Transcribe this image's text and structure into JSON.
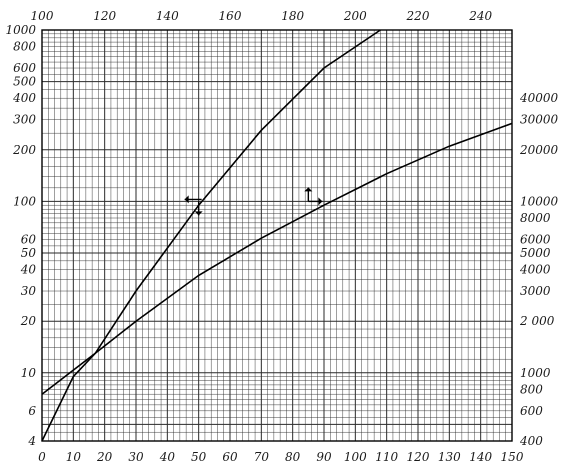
{
  "chart_data": {
    "type": "line",
    "title": "",
    "xlabel": "",
    "ylabel": "",
    "x_bottom": {
      "range": [
        0,
        150
      ],
      "ticks": [
        0,
        10,
        20,
        30,
        40,
        50,
        60,
        70,
        80,
        90,
        100,
        110,
        120,
        130,
        140,
        150
      ],
      "tick_labels": [
        "0",
        "10",
        "20",
        "30",
        "40",
        "50",
        "60",
        "70",
        "80",
        "90",
        "100",
        "110",
        "120",
        "130",
        "140",
        "150"
      ]
    },
    "x_top": {
      "range": [
        100,
        250
      ],
      "ticks": [
        100,
        120,
        140,
        160,
        180,
        200,
        220,
        240
      ],
      "tick_labels": [
        "100",
        "120",
        "140",
        "160",
        "180",
        "200",
        "220",
        "240"
      ]
    },
    "y_left": {
      "scale": "log",
      "range": [
        4,
        1000
      ],
      "ticks": [
        4,
        6,
        10,
        20,
        30,
        40,
        50,
        60,
        100,
        200,
        300,
        400,
        500,
        600,
        800,
        1000
      ],
      "tick_labels": [
        "4",
        "6",
        "10",
        "20",
        "30",
        "40",
        "50",
        "60",
        "100",
        "200",
        "300",
        "400",
        "500",
        "600",
        "800",
        "1000"
      ]
    },
    "y_right": {
      "scale": "log",
      "range": [
        400,
        100000
      ],
      "ticks": [
        400,
        600,
        800,
        1000,
        2000,
        3000,
        4000,
        5000,
        6000,
        8000,
        10000,
        20000,
        30000,
        40000
      ],
      "tick_labels": [
        "400",
        "600",
        "800",
        "1000",
        "2 000",
        "3000",
        "4000",
        "5000",
        "6000",
        "8000",
        "10000",
        "20000",
        "30000",
        "40000"
      ]
    },
    "grid": true,
    "legend": "none",
    "series": [
      {
        "axes": "bottom-left",
        "x": [
          0,
          10,
          17,
          30,
          50,
          70,
          90,
          108
        ],
        "y": [
          4,
          9.5,
          13,
          30,
          95,
          260,
          600,
          1000
        ]
      },
      {
        "axes": "bottom-right",
        "x": [
          0,
          17,
          30,
          50,
          70,
          90,
          110,
          130,
          150
        ],
        "y": [
          750,
          1300,
          2000,
          3700,
          6100,
          9500,
          14500,
          21000,
          28500
        ]
      }
    ],
    "annotations": [
      {
        "symbol": "arrow-left",
        "x": 50,
        "y": 100,
        "axis": "left"
      },
      {
        "symbol": "arrow-down",
        "x": 50,
        "y": 100,
        "axis": "left"
      },
      {
        "symbol": "arrow-up",
        "x": 85,
        "y": 10000,
        "axis": "right"
      },
      {
        "symbol": "arrow-right",
        "x": 85,
        "y": 10000,
        "axis": "right"
      }
    ]
  }
}
